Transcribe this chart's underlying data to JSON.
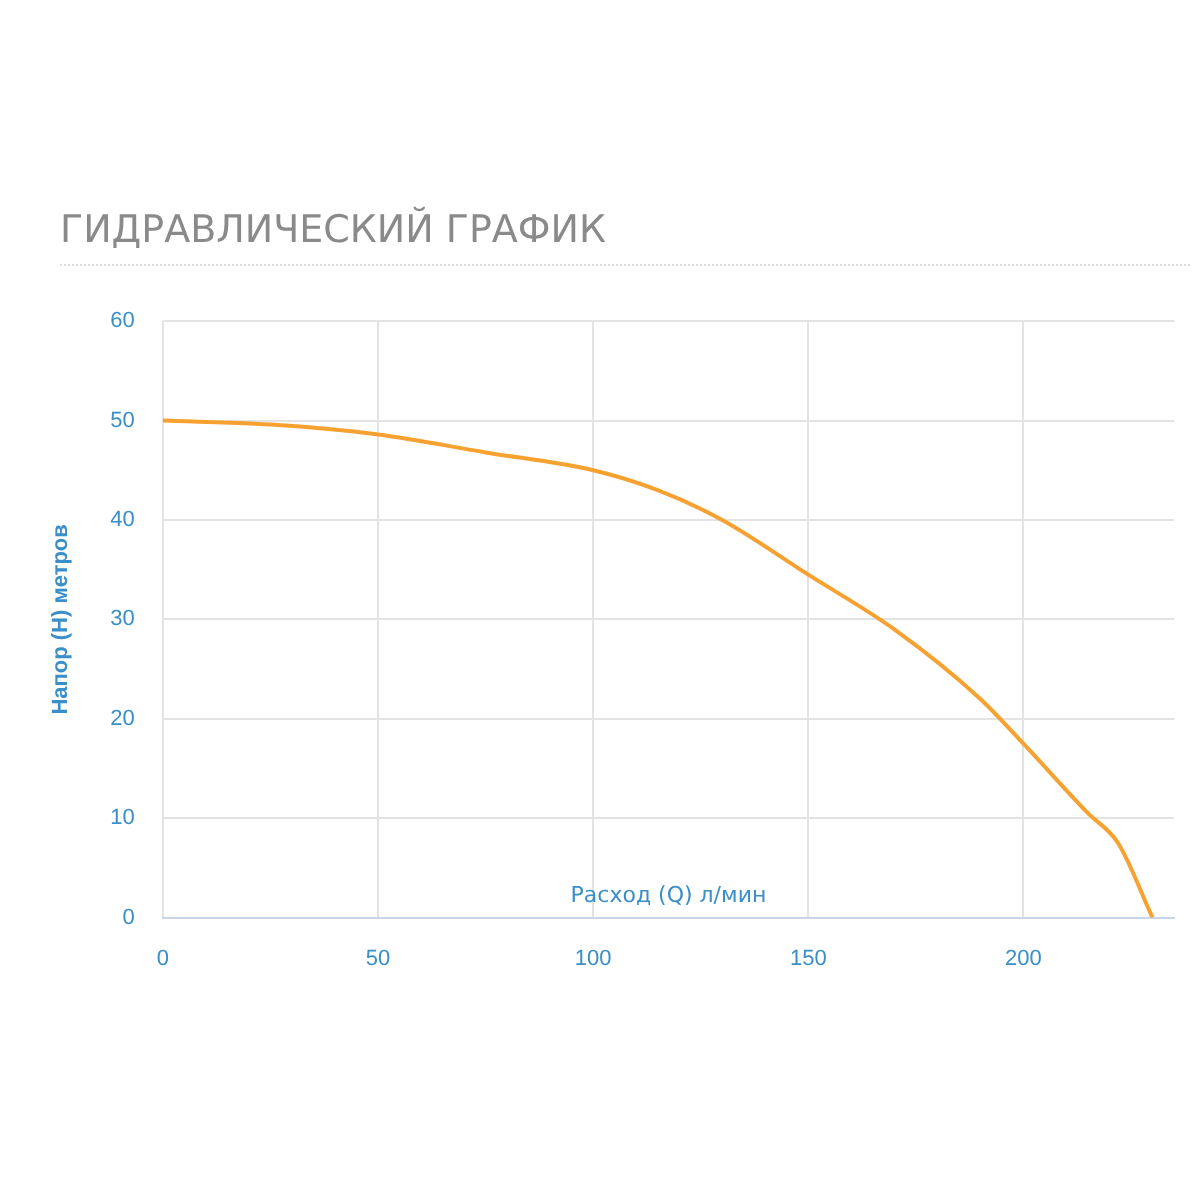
{
  "chart_data": {
    "type": "line",
    "title": "ГИДРАВЛИЧЕСКИЙ ГРАФИК",
    "xlabel": "Расход (Q) л/мин",
    "ylabel": "Напор (H) метров",
    "x": [
      0,
      25,
      50,
      75,
      100,
      115,
      130,
      150,
      170,
      190,
      200,
      215,
      222,
      230
    ],
    "series": [
      {
        "color": "#f7a130",
        "values": [
          50,
          49.6,
          48.6,
          46.8,
          45,
          43,
          40,
          34.5,
          29,
          22,
          17.5,
          10.5,
          7.5,
          0
        ]
      }
    ],
    "xlim": [
      0,
      235
    ],
    "xticks": [
      0,
      50,
      100,
      150,
      200
    ],
    "ylim": [
      0,
      60
    ],
    "yticks": [
      0,
      10,
      20,
      30,
      40,
      50,
      60
    ],
    "grid": true,
    "legend": false,
    "marker": "none",
    "line_style": "solid"
  }
}
